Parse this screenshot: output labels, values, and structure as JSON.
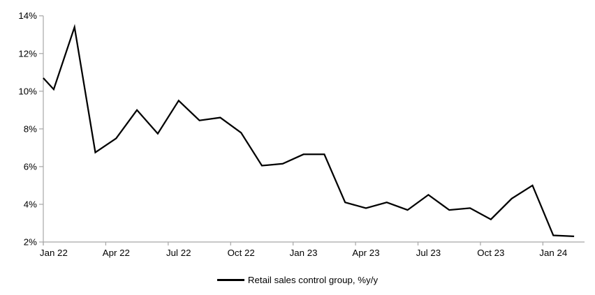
{
  "chart_data": {
    "type": "line",
    "title": "",
    "x": [
      "Jan 22",
      "Feb 22",
      "Mar 22",
      "Apr 22",
      "May 22",
      "Jun 22",
      "Jul 22",
      "Aug 22",
      "Sep 22",
      "Oct 22",
      "Nov 22",
      "Dec 22",
      "Jan 23",
      "Feb 23",
      "Mar 23",
      "Apr 23",
      "May 23",
      "Jun 23",
      "Jul 23",
      "Aug 23",
      "Sep 23",
      "Oct 23",
      "Nov 23",
      "Dec 23",
      "Jan 24",
      "Feb 24"
    ],
    "series": [
      {
        "name": "Retail sales control group, %y/y",
        "values": [
          10.1,
          13.4,
          6.75,
          7.5,
          9.0,
          7.75,
          9.5,
          8.45,
          8.6,
          7.8,
          6.05,
          6.15,
          6.65,
          6.65,
          4.1,
          3.8,
          4.1,
          3.7,
          4.5,
          3.7,
          3.8,
          3.2,
          4.3,
          5.0,
          2.35,
          2.3
        ],
        "clipped_entry_value_at_left_edge": 10.7,
        "color": "#000000"
      }
    ],
    "xtick_labels": [
      "Jan 22",
      "Apr 22",
      "Jul 22",
      "Oct 22",
      "Jan 23",
      "Apr 23",
      "Jul 23",
      "Oct 23",
      "Jan 24"
    ],
    "xtick_every_n_categories": 3,
    "ylim": [
      2,
      14
    ],
    "yticks": [
      2,
      4,
      6,
      8,
      10,
      12,
      14
    ],
    "ytick_suffix": "%",
    "grid": false,
    "legend_position": "bottom-center",
    "axis_color": "#a6a6a6",
    "text_color": "#000000"
  }
}
